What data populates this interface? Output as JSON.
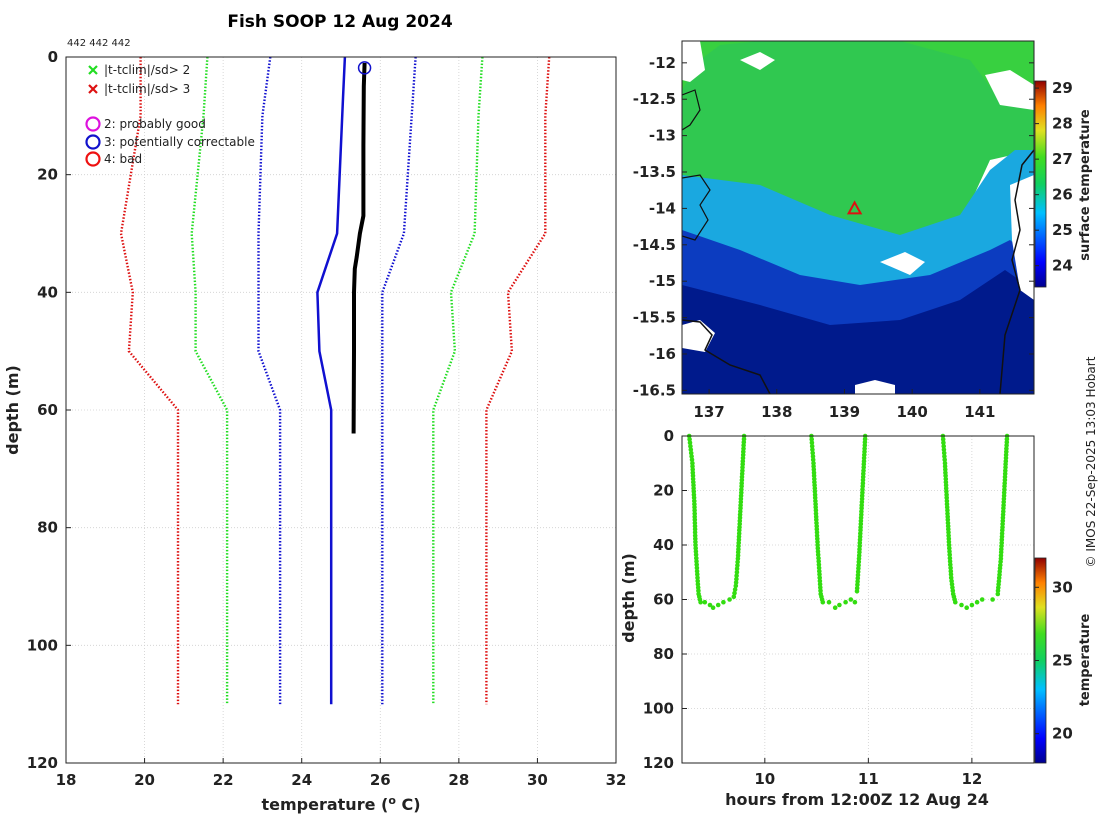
{
  "chart_data": [
    {
      "type": "line",
      "title": "Fish SOOP 12 Aug 2024",
      "corner_label": "442 442 442",
      "xlabel": "temperature (",
      "xlabel_sup": "o",
      "xlabel_tail": " C)",
      "ylabel": "depth (m)",
      "xlim": [
        18,
        32
      ],
      "ylim": [
        120,
        0
      ],
      "xticks": [
        18,
        20,
        22,
        24,
        26,
        28,
        30,
        32
      ],
      "yticks": [
        0,
        20,
        40,
        60,
        80,
        100,
        120
      ],
      "legend": [
        {
          "label": "|t-tclim|/sd> 2",
          "marker": "x",
          "color": "#22dd22"
        },
        {
          "label": "|t-tclim|/sd> 3",
          "marker": "x",
          "color": "#dd1111"
        },
        {
          "label": "2: probably good",
          "marker": "o",
          "color": "#dd11dd"
        },
        {
          "label": "3: potentially correctable",
          "marker": "o",
          "color": "#1111cc"
        },
        {
          "label": "4: bad",
          "marker": "o",
          "color": "#ee1111"
        }
      ],
      "series": [
        {
          "name": "climatology mean",
          "color": "#1010d0",
          "style": "solid",
          "points": [
            [
              25.1,
              0
            ],
            [
              25.05,
              7
            ],
            [
              24.9,
              30
            ],
            [
              24.4,
              40
            ],
            [
              24.45,
              50
            ],
            [
              24.75,
              60
            ],
            [
              24.75,
              110
            ]
          ]
        },
        {
          "name": "clim -1 sd",
          "color": "#1010d0",
          "style": "dotted",
          "points": [
            [
              23.2,
              0
            ],
            [
              23.0,
              10
            ],
            [
              22.9,
              30
            ],
            [
              22.9,
              50
            ],
            [
              23.45,
              60
            ],
            [
              23.45,
              110
            ]
          ]
        },
        {
          "name": "clim +1 sd",
          "color": "#1010d0",
          "style": "dotted",
          "points": [
            [
              26.9,
              0
            ],
            [
              26.8,
              10
            ],
            [
              26.6,
              30
            ],
            [
              26.05,
              40
            ],
            [
              26.05,
              60
            ],
            [
              26.05,
              110
            ]
          ]
        },
        {
          "name": "clim -2 sd",
          "color": "#22dd22",
          "style": "dotted",
          "points": [
            [
              21.6,
              0
            ],
            [
              21.5,
              10
            ],
            [
              21.2,
              30
            ],
            [
              21.3,
              40
            ],
            [
              21.3,
              50
            ],
            [
              22.1,
              60
            ],
            [
              22.1,
              110
            ]
          ]
        },
        {
          "name": "clim +2 sd",
          "color": "#22dd22",
          "style": "dotted",
          "points": [
            [
              28.6,
              0
            ],
            [
              28.5,
              10
            ],
            [
              28.4,
              30
            ],
            [
              27.8,
              40
            ],
            [
              27.9,
              50
            ],
            [
              27.35,
              60
            ],
            [
              27.35,
              110
            ]
          ]
        },
        {
          "name": "clim -3 sd",
          "color": "#dd1111",
          "style": "dotted",
          "points": [
            [
              19.9,
              0
            ],
            [
              19.9,
              10
            ],
            [
              19.4,
              30
            ],
            [
              19.7,
              40
            ],
            [
              19.6,
              50
            ],
            [
              20.85,
              60
            ],
            [
              20.85,
              110
            ]
          ]
        },
        {
          "name": "clim +3 sd",
          "color": "#dd1111",
          "style": "dotted",
          "points": [
            [
              30.3,
              0
            ],
            [
              30.2,
              10
            ],
            [
              30.2,
              30
            ],
            [
              29.25,
              40
            ],
            [
              29.35,
              50
            ],
            [
              28.7,
              60
            ],
            [
              28.7,
              110
            ]
          ]
        },
        {
          "name": "observed profile",
          "color": "#000000",
          "style": "thick",
          "points": [
            [
              25.6,
              1
            ],
            [
              25.58,
              5
            ],
            [
              25.57,
              15
            ],
            [
              25.57,
              27
            ],
            [
              25.48,
              30
            ],
            [
              25.4,
              34
            ],
            [
              25.35,
              36
            ],
            [
              25.33,
              40
            ],
            [
              25.33,
              50
            ],
            [
              25.32,
              64
            ]
          ]
        }
      ],
      "flag_point": {
        "x": 25.6,
        "y": 1,
        "flag": "3: potentially correctable"
      }
    },
    {
      "type": "heatmap",
      "description": "surface temperature map",
      "xticks": [
        "137",
        "138",
        "139",
        "140",
        "141"
      ],
      "yticks": [
        "-12",
        "-12.5",
        "-13",
        "-13.5",
        "-14",
        "-14.5",
        "-15",
        "-15.5",
        "-16",
        "-16.5"
      ],
      "xlim": [
        136.6,
        141.8
      ],
      "ylim": [
        -16.55,
        -11.7
      ],
      "marker": {
        "lon": 139.15,
        "lat": -14.0,
        "symbol": "triangle",
        "color": "#dd1111"
      },
      "colorbar": {
        "label": "surface temperature",
        "ticks": [
          "24",
          "25",
          "26",
          "27",
          "28",
          "29"
        ],
        "range": [
          23.4,
          29.2
        ]
      }
    },
    {
      "type": "scatter",
      "xlabel": "hours from 12:00Z 12 Aug 24",
      "ylabel": "depth (m)",
      "xlim": [
        9.2,
        12.6
      ],
      "ylim": [
        120,
        0
      ],
      "xticks": [
        "10",
        "11",
        "12"
      ],
      "yticks": [
        "0",
        "20",
        "40",
        "60",
        "80",
        "100",
        "120"
      ],
      "color": "#33dd11",
      "casts": [
        {
          "down": [
            [
              9.27,
              0
            ],
            [
              9.3,
              10
            ],
            [
              9.32,
              25
            ],
            [
              9.33,
              40
            ],
            [
              9.35,
              52
            ],
            [
              9.36,
              58
            ],
            [
              9.38,
              61
            ],
            [
              9.42,
              61
            ]
          ],
          "bottom": [
            [
              9.47,
              62
            ],
            [
              9.5,
              63
            ],
            [
              9.55,
              62
            ],
            [
              9.6,
              61
            ],
            [
              9.66,
              60
            ]
          ],
          "up": [
            [
              9.7,
              59
            ],
            [
              9.72,
              55
            ],
            [
              9.74,
              45
            ],
            [
              9.76,
              30
            ],
            [
              9.78,
              15
            ],
            [
              9.8,
              0
            ]
          ]
        },
        {
          "down": [
            [
              10.45,
              0
            ],
            [
              10.47,
              10
            ],
            [
              10.49,
              25
            ],
            [
              10.51,
              40
            ],
            [
              10.53,
              52
            ],
            [
              10.54,
              58
            ],
            [
              10.56,
              61
            ]
          ],
          "bottom": [
            [
              10.62,
              61
            ],
            [
              10.68,
              63
            ],
            [
              10.72,
              62
            ],
            [
              10.78,
              61
            ],
            [
              10.83,
              60
            ],
            [
              10.87,
              61
            ]
          ],
          "up": [
            [
              10.89,
              57
            ],
            [
              10.91,
              45
            ],
            [
              10.93,
              30
            ],
            [
              10.95,
              15
            ],
            [
              10.97,
              0
            ]
          ]
        },
        {
          "down": [
            [
              11.72,
              0
            ],
            [
              11.74,
              10
            ],
            [
              11.76,
              25
            ],
            [
              11.78,
              40
            ],
            [
              11.8,
              52
            ],
            [
              11.82,
              58
            ],
            [
              11.84,
              61
            ]
          ],
          "bottom": [
            [
              11.9,
              62
            ],
            [
              11.95,
              63
            ],
            [
              12.0,
              62
            ],
            [
              12.05,
              61
            ],
            [
              12.1,
              60
            ],
            [
              12.2,
              60
            ]
          ],
          "up": [
            [
              12.25,
              58
            ],
            [
              12.28,
              45
            ],
            [
              12.3,
              30
            ],
            [
              12.32,
              15
            ],
            [
              12.34,
              0
            ]
          ]
        }
      ],
      "colorbar": {
        "label": "temperature",
        "ticks": [
          "20",
          "25",
          "30"
        ],
        "range": [
          18,
          32
        ]
      }
    }
  ],
  "credit": "© IMOS 22-Sep-2025 13:03 Hobart"
}
